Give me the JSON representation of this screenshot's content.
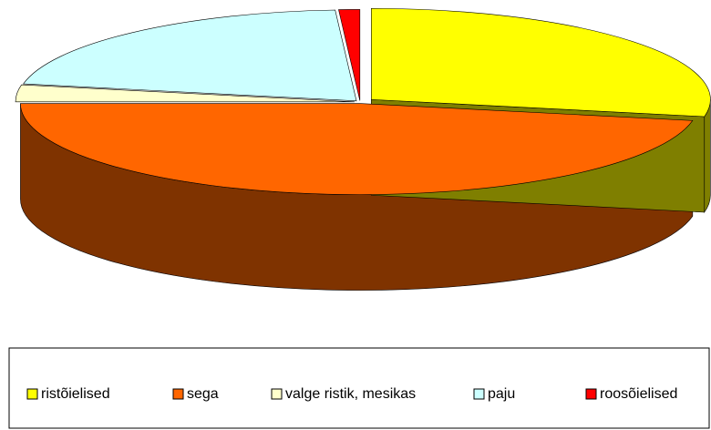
{
  "chart_data": {
    "type": "pie3d",
    "categories": [
      "ristõielised",
      "sega",
      "valge ristik, mesikas",
      "paju",
      "roosõielised"
    ],
    "values": [
      28,
      47,
      3,
      21,
      1
    ],
    "colors": [
      "#ffff00",
      "#ff6600",
      "#ffffcc",
      "#ccffff",
      "#ff0000"
    ]
  }
}
